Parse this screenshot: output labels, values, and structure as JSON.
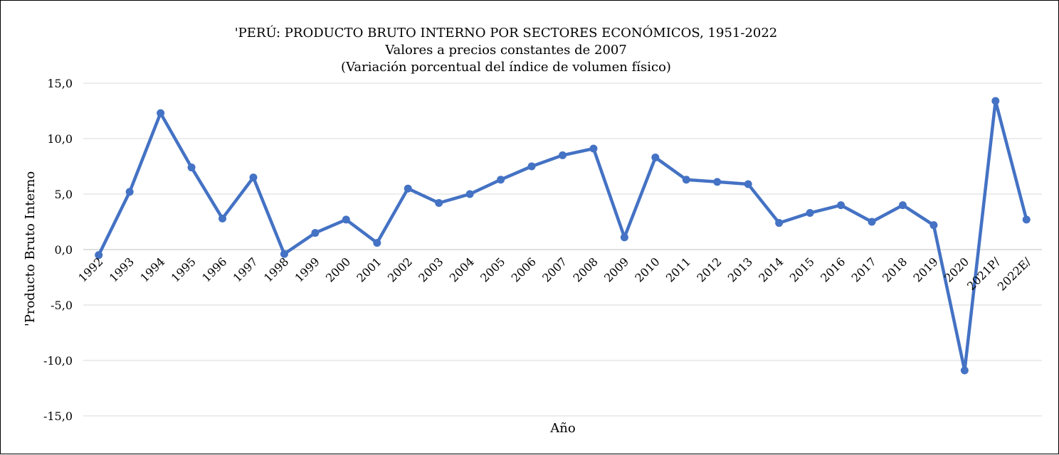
{
  "chart_data": {
    "type": "line",
    "title": "'PERÚ: PRODUCTO BRUTO INTERNO POR SECTORES ECONÓMICOS, 1951-2022",
    "subtitle_lines": [
      "Valores a precios constantes de 2007",
      "(Variación porcentual del índice de volumen físico)"
    ],
    "xlabel": "Año",
    "ylabel": "'Producto  Bruto Interno",
    "ylim": [
      -15,
      15
    ],
    "y_ticks": [
      15,
      10,
      5,
      0,
      -5,
      -10,
      -15
    ],
    "y_tick_labels": [
      "15,0",
      "10,0",
      "5,0",
      "0,0",
      "-5,0",
      "-10,0",
      "-15,0"
    ],
    "grid": true,
    "legend": "none",
    "categories": [
      "1992",
      "1993",
      "1994",
      "1995",
      "1996",
      "1997",
      "1998",
      "1999",
      "2000",
      "2001",
      "2002",
      "2003",
      "2004",
      "2005",
      "2006",
      "2007",
      "2008",
      "2009",
      "2010",
      "2011",
      "2012",
      "2013",
      "2014",
      "2015",
      "2016",
      "2017",
      "2018",
      "2019",
      "2020",
      "2021P/",
      "2022E/"
    ],
    "series": [
      {
        "values": [
          -0.5,
          5.2,
          12.3,
          7.4,
          2.8,
          6.5,
          -0.4,
          1.5,
          2.7,
          0.6,
          5.5,
          4.2,
          5.0,
          6.3,
          7.5,
          8.5,
          9.1,
          1.1,
          8.3,
          6.3,
          6.1,
          5.9,
          2.4,
          3.3,
          4.0,
          2.5,
          4.0,
          2.2,
          -10.9,
          13.4,
          2.7
        ],
        "color": "#4472C4"
      }
    ]
  }
}
